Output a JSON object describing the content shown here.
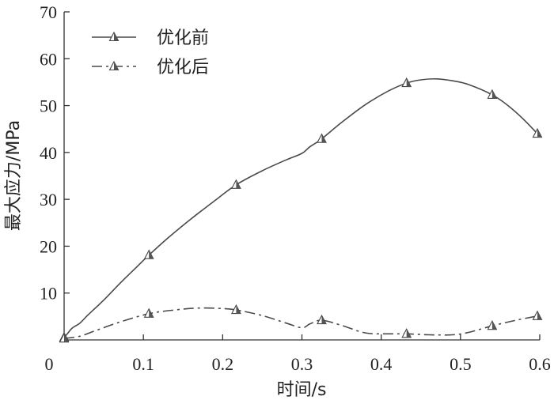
{
  "chart_data": {
    "type": "line",
    "xlabel": "时间/s",
    "ylabel": "最大应力/MPa",
    "xlim": [
      0,
      0.6
    ],
    "ylim": [
      0,
      70
    ],
    "xticks": [
      0,
      0.1,
      0.2,
      0.3,
      0.4,
      0.5,
      0.6
    ],
    "yticks": [
      10,
      20,
      30,
      40,
      50,
      60,
      70
    ],
    "xtick_labels": [
      "0",
      "0.1",
      "0.2",
      "0.3",
      "0.4",
      "0.5",
      "0.6"
    ],
    "ytick_labels": [
      "10",
      "20",
      "30",
      "40",
      "50",
      "60",
      "70"
    ],
    "legend_position": "top-left",
    "grid": false,
    "series": [
      {
        "name": "优化前",
        "line_style": "solid",
        "color": "#4a4a4a",
        "marker_points": [
          [
            0.0,
            0.5
          ],
          [
            0.107,
            18.1
          ],
          [
            0.217,
            33.1
          ],
          [
            0.325,
            42.9
          ],
          [
            0.432,
            54.8
          ],
          [
            0.54,
            52.3
          ],
          [
            0.597,
            44.0
          ]
        ],
        "curve": [
          [
            0.0,
            0.5
          ],
          [
            0.005,
            1.5
          ],
          [
            0.01,
            2.5
          ],
          [
            0.02,
            3.6
          ],
          [
            0.03,
            5.3
          ],
          [
            0.05,
            8.5
          ],
          [
            0.07,
            12.0
          ],
          [
            0.09,
            15.3
          ],
          [
            0.107,
            18.1
          ],
          [
            0.13,
            21.6
          ],
          [
            0.16,
            25.8
          ],
          [
            0.19,
            29.7
          ],
          [
            0.217,
            33.1
          ],
          [
            0.25,
            36.1
          ],
          [
            0.28,
            38.4
          ],
          [
            0.3,
            39.8
          ],
          [
            0.31,
            41.2
          ],
          [
            0.325,
            42.9
          ],
          [
            0.35,
            46.4
          ],
          [
            0.38,
            50.2
          ],
          [
            0.41,
            53.2
          ],
          [
            0.432,
            54.8
          ],
          [
            0.45,
            55.5
          ],
          [
            0.47,
            55.7
          ],
          [
            0.49,
            55.3
          ],
          [
            0.51,
            54.5
          ],
          [
            0.54,
            52.3
          ],
          [
            0.56,
            50.0
          ],
          [
            0.58,
            47.0
          ],
          [
            0.597,
            44.0
          ]
        ]
      },
      {
        "name": "优化后",
        "line_style": "dash-dot",
        "color": "#4a4a4a",
        "marker_points": [
          [
            0.0,
            0.3
          ],
          [
            0.107,
            5.6
          ],
          [
            0.217,
            6.4
          ],
          [
            0.325,
            4.2
          ],
          [
            0.432,
            1.3
          ],
          [
            0.54,
            3.0
          ],
          [
            0.597,
            5.1
          ]
        ],
        "curve": [
          [
            0.0,
            0.3
          ],
          [
            0.02,
            0.8
          ],
          [
            0.04,
            2.0
          ],
          [
            0.07,
            3.8
          ],
          [
            0.107,
            5.6
          ],
          [
            0.14,
            6.4
          ],
          [
            0.17,
            6.8
          ],
          [
            0.2,
            6.7
          ],
          [
            0.217,
            6.4
          ],
          [
            0.25,
            5.2
          ],
          [
            0.28,
            3.6
          ],
          [
            0.3,
            2.6
          ],
          [
            0.31,
            3.4
          ],
          [
            0.325,
            4.2
          ],
          [
            0.35,
            3.1
          ],
          [
            0.38,
            1.5
          ],
          [
            0.41,
            1.3
          ],
          [
            0.432,
            1.3
          ],
          [
            0.46,
            1.1
          ],
          [
            0.49,
            1.1
          ],
          [
            0.51,
            1.6
          ],
          [
            0.54,
            3.0
          ],
          [
            0.57,
            4.2
          ],
          [
            0.597,
            5.1
          ]
        ]
      }
    ]
  }
}
